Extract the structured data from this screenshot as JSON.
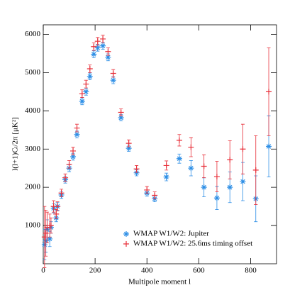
{
  "chart_data": {
    "type": "scatter",
    "x_label": "Multipole moment l",
    "y_label": "l(l+1)Cₗ/2π [μK²]",
    "xlim": [
      0,
      900
    ],
    "xticks": [
      0,
      200,
      400,
      600,
      800
    ],
    "ylim": [
      0,
      6250
    ],
    "yticks": [
      1000,
      2000,
      3000,
      4000,
      5000,
      6000
    ],
    "legend": "bottom",
    "x": [
      5,
      10,
      15,
      25,
      30,
      40,
      50,
      55,
      70,
      85,
      100,
      115,
      130,
      150,
      165,
      180,
      195,
      210,
      230,
      250,
      270,
      300,
      330,
      360,
      400,
      430,
      475,
      525,
      570,
      620,
      670,
      720,
      770,
      820,
      870
    ],
    "series": [
      {
        "name": "WMAP W1/W2: Jupiter",
        "color": "#2e8fe6",
        "marker": "star",
        "values": [
          500,
          600,
          900,
          650,
          950,
          1450,
          1200,
          1500,
          1800,
          2200,
          2500,
          2800,
          3380,
          4250,
          4500,
          4900,
          5480,
          5650,
          5700,
          5400,
          4800,
          3820,
          3020,
          2380,
          1850,
          1700,
          2270,
          2750,
          2500,
          2000,
          1720,
          2000,
          2150,
          1700,
          3070
        ],
        "errors": [
          400,
          300,
          250,
          200,
          150,
          120,
          100,
          100,
          90,
          90,
          90,
          90,
          90,
          90,
          90,
          90,
          90,
          90,
          90,
          90,
          90,
          80,
          80,
          80,
          80,
          80,
          100,
          120,
          200,
          250,
          300,
          400,
          500,
          600,
          800
        ]
      },
      {
        "name": "WMAP W1/W2: 25.6ms timing offset",
        "color": "#e8303a",
        "marker": "plus",
        "values": [
          700,
          800,
          950,
          1000,
          1000,
          1500,
          1300,
          1500,
          1850,
          2250,
          2600,
          2950,
          3550,
          4450,
          4700,
          5100,
          5680,
          5820,
          5880,
          5550,
          4980,
          3960,
          3150,
          2480,
          1930,
          1790,
          2570,
          3230,
          3050,
          2550,
          2280,
          2720,
          3000,
          2450,
          4500
        ],
        "errors": [
          800,
          600,
          400,
          300,
          200,
          150,
          120,
          120,
          100,
          100,
          100,
          100,
          100,
          100,
          100,
          100,
          100,
          100,
          100,
          100,
          100,
          90,
          90,
          90,
          90,
          90,
          120,
          150,
          250,
          300,
          400,
          500,
          650,
          900,
          1150
        ]
      }
    ]
  }
}
